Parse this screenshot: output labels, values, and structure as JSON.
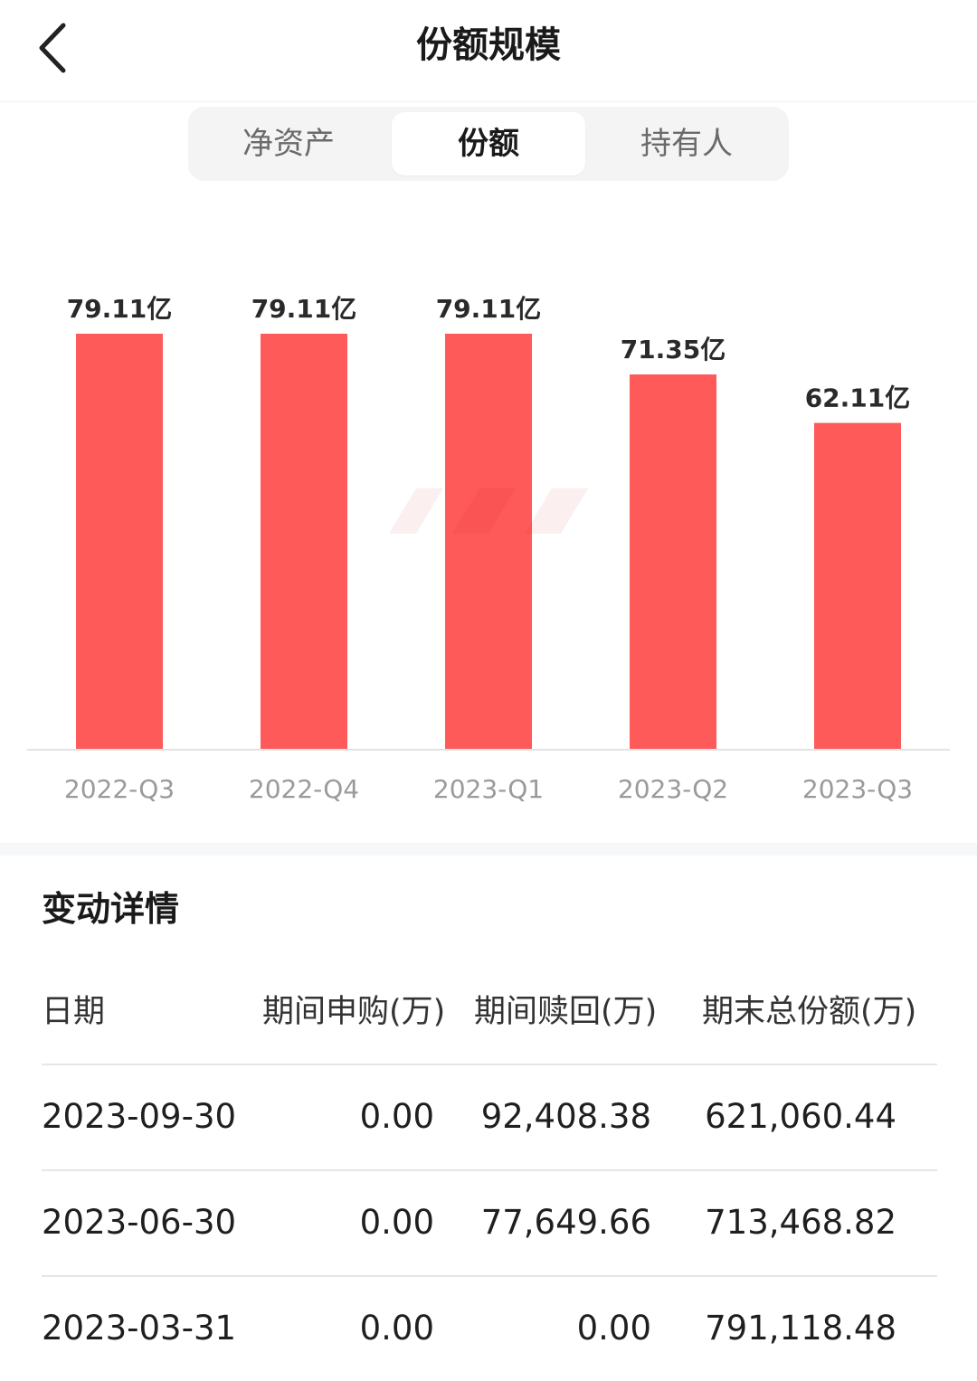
{
  "header": {
    "title": "份额规模",
    "back_icon": "chevron-left-icon"
  },
  "tabs": [
    {
      "label": "净资产",
      "active": false
    },
    {
      "label": "份额",
      "active": true
    },
    {
      "label": "持有人",
      "active": false
    }
  ],
  "chart_data": {
    "type": "bar",
    "categories": [
      "2022-Q3",
      "2022-Q4",
      "2023-Q1",
      "2023-Q2",
      "2023-Q3"
    ],
    "values": [
      79.11,
      79.11,
      79.11,
      71.35,
      62.11
    ],
    "data_labels": [
      "79.11亿",
      "79.11亿",
      "79.11亿",
      "71.35亿",
      "62.11亿"
    ],
    "title": "",
    "xlabel": "",
    "ylabel": "",
    "ylim": [
      0,
      79.11
    ],
    "grid": false,
    "bar_color": "#ff5a5a"
  },
  "details": {
    "title": "变动详情",
    "columns": [
      "日期",
      "期间申购(万)",
      "期间赎回(万)",
      "期末总份额(万)"
    ],
    "rows": [
      {
        "date": "2023-09-30",
        "subscription": "0.00",
        "redemption": "92,408.38",
        "total": "621,060.44"
      },
      {
        "date": "2023-06-30",
        "subscription": "0.00",
        "redemption": "77,649.66",
        "total": "713,468.82"
      },
      {
        "date": "2023-03-31",
        "subscription": "0.00",
        "redemption": "0.00",
        "total": "791,118.48"
      }
    ]
  }
}
